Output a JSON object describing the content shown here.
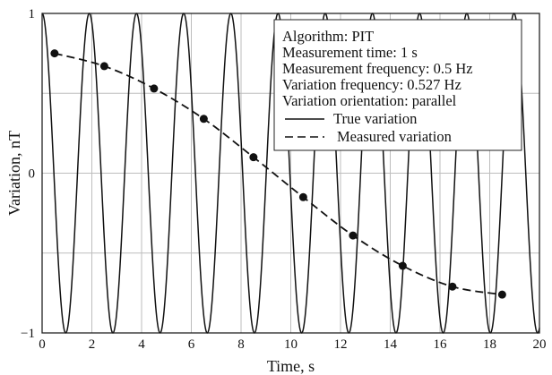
{
  "chart_data": {
    "type": "line",
    "xlabel": "Time, s",
    "ylabel": "Variation, nT",
    "xlim": [
      0,
      20
    ],
    "ylim": [
      -1,
      1
    ],
    "grid": true,
    "x_ticks": [
      "0",
      "2",
      "4",
      "6",
      "8",
      "10",
      "12",
      "14",
      "16",
      "18",
      "20"
    ],
    "y_ticks": [
      "−1",
      "0",
      "1"
    ],
    "legend_position": "top-right",
    "info_lines": [
      "Algorithm: PIT",
      "Measurement time: 1 s",
      "Measurement frequency: 0.5 Hz",
      "Variation frequency: 0.527 Hz",
      "Variation orientation: parallel"
    ],
    "series": [
      {
        "name": "True variation",
        "style": "solid",
        "function": "cos",
        "frequency_hz": 0.527,
        "amplitude": 1
      },
      {
        "name": "Measured variation",
        "style": "dashed",
        "markers": true,
        "x": [
          0.5,
          2.5,
          4.5,
          6.5,
          8.5,
          10.5,
          12.5,
          14.5,
          16.5,
          18.5
        ],
        "values": [
          0.75,
          0.67,
          0.53,
          0.34,
          0.1,
          -0.15,
          -0.39,
          -0.58,
          -0.71,
          -0.76
        ]
      }
    ]
  }
}
